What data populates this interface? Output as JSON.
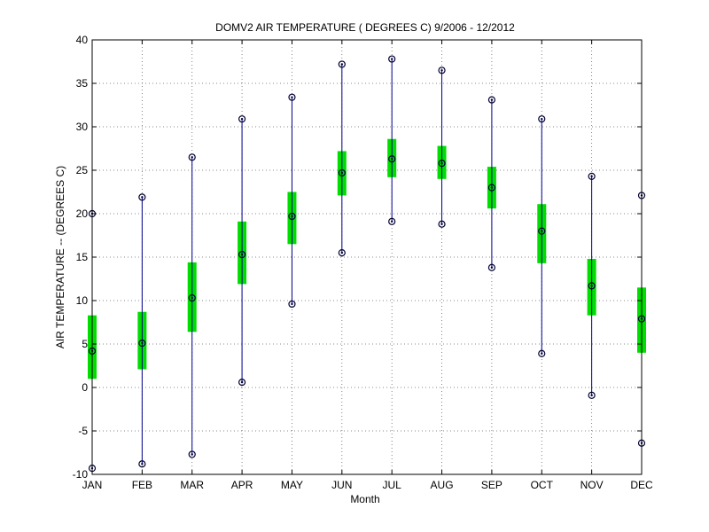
{
  "chart_data": {
    "type": "box",
    "title": "DOMV2  AIR TEMPERATURE ( DEGREES C) 9/2006 - 12/2012",
    "xlabel": "Month",
    "ylabel": "AIR TEMPERATURE -- (DEGREES C)",
    "ylim": [
      -10,
      40
    ],
    "yticks": [
      -10,
      -5,
      0,
      5,
      10,
      15,
      20,
      25,
      30,
      35,
      40
    ],
    "ytick_labels": [
      "-10",
      "-5",
      "0",
      "5",
      "10",
      "15",
      "20",
      "25",
      "30",
      "35",
      "40"
    ],
    "grid": true,
    "categories": [
      "JAN",
      "FEB",
      "MAR",
      "APR",
      "MAY",
      "JUN",
      "JUL",
      "AUG",
      "SEP",
      "OCT",
      "NOV",
      "DEC"
    ],
    "max": [
      20.0,
      21.9,
      26.5,
      30.9,
      33.4,
      37.2,
      37.8,
      36.5,
      33.1,
      30.9,
      24.3,
      22.1
    ],
    "q3": [
      8.3,
      8.7,
      14.4,
      19.1,
      22.5,
      27.2,
      28.6,
      27.8,
      25.4,
      21.1,
      14.8,
      11.5
    ],
    "mean": [
      4.2,
      5.1,
      10.3,
      15.3,
      19.7,
      24.7,
      26.3,
      25.8,
      23.0,
      18.0,
      11.7,
      7.9
    ],
    "q1": [
      1.0,
      2.1,
      6.4,
      11.9,
      16.5,
      22.1,
      24.2,
      24.0,
      20.6,
      14.3,
      8.3,
      4.0
    ],
    "min": [
      -9.3,
      -8.8,
      -7.7,
      0.6,
      9.6,
      15.5,
      19.1,
      18.8,
      13.8,
      3.9,
      -0.9,
      -6.4
    ],
    "colors": {
      "whisker": "#00008b",
      "box": "#00dd00",
      "marker": "#000033",
      "grid": "#666666"
    }
  }
}
